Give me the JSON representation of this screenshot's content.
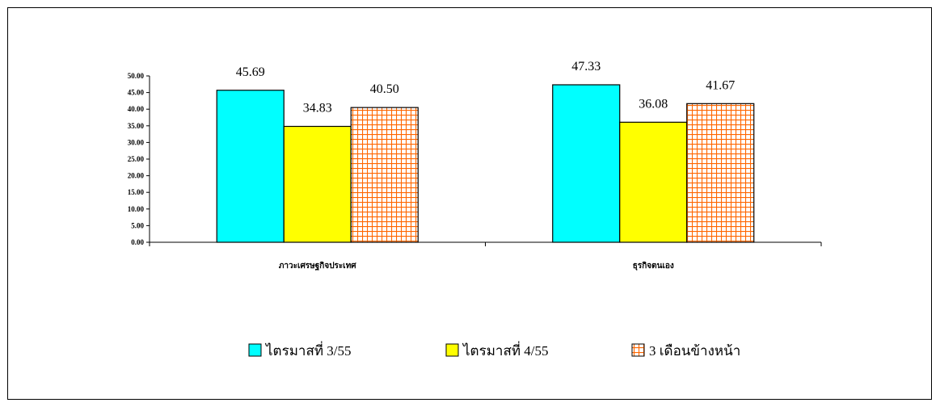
{
  "chart_data": {
    "type": "bar",
    "title": "",
    "xlabel": "",
    "ylabel": "",
    "categories": [
      "ภาวะเศรษฐกิจประเทศ",
      "ธุรกิจตนเอง"
    ],
    "series": [
      {
        "name": "ไตรมาสที่ 3/55",
        "values": [
          45.69,
          47.33
        ],
        "labels": [
          "45.69",
          "47.33"
        ],
        "color": "#00FFFF",
        "pattern": "solid"
      },
      {
        "name": "ไตรมาสที่ 4/55",
        "values": [
          34.83,
          36.08
        ],
        "labels": [
          "34.83",
          "36.08"
        ],
        "color": "#FFFF00",
        "pattern": "solid"
      },
      {
        "name": "3 เดือนข้างหน้า",
        "values": [
          40.5,
          41.67
        ],
        "labels": [
          "40.50",
          "41.67"
        ],
        "color": "#FF6600",
        "pattern": "grid"
      }
    ],
    "ylim": [
      0,
      50
    ],
    "yticks": [
      0,
      5,
      10,
      15,
      20,
      25,
      30,
      35,
      40,
      45,
      50
    ],
    "ytick_labels": [
      "0.00",
      "5.00",
      "10.00",
      "15.00",
      "20.00",
      "25.00",
      "30.00",
      "35.00",
      "40.00",
      "45.00",
      "50.00"
    ],
    "grid": false,
    "legend_position": "bottom"
  }
}
